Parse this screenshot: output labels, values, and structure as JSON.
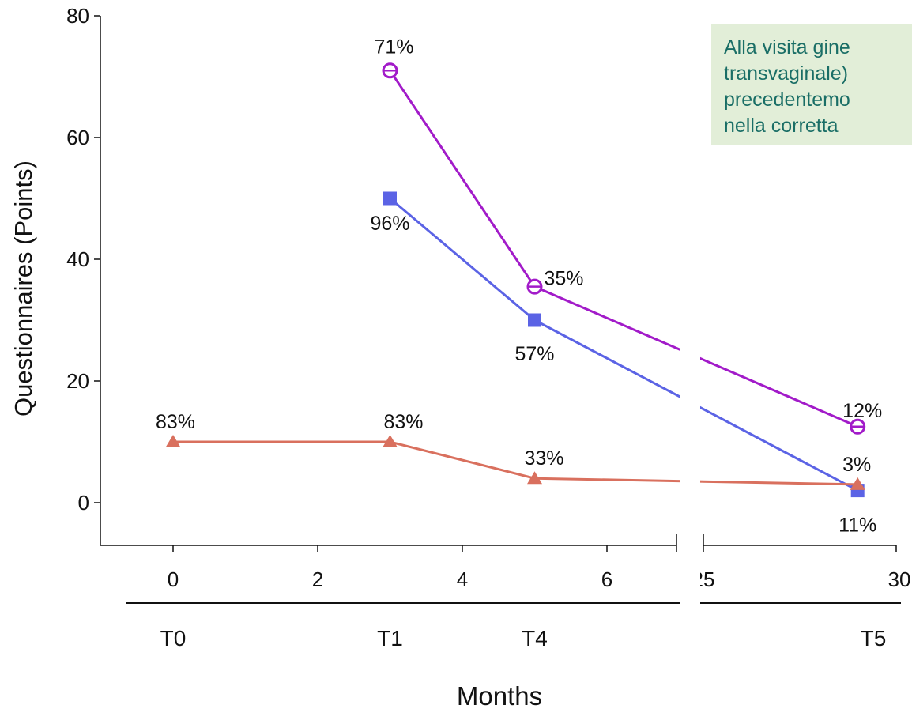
{
  "chart_data": {
    "type": "line",
    "title": "",
    "xlabel": "Months",
    "ylabel": "Questionnaires (Points)",
    "ylim": [
      -7,
      80
    ],
    "y_ticks": [
      "0",
      "20",
      "40",
      "60",
      "80"
    ],
    "x_ticks": [
      "0",
      "2",
      "4",
      "6",
      "25",
      "30"
    ],
    "x_axis_break": true,
    "timepoint_labels": [
      {
        "label": "T0",
        "x": 0
      },
      {
        "label": "T1",
        "x": 3
      },
      {
        "label": "T4",
        "x": 5
      },
      {
        "label": "T5",
        "x": 29
      }
    ],
    "legend": "none",
    "grid": false,
    "series": [
      {
        "marker": "circle-open",
        "color": "#a21bc9",
        "x": [
          3,
          5,
          29
        ],
        "y": [
          71,
          35.5,
          12.5
        ],
        "labels": [
          "71%",
          "35%",
          "12%"
        ]
      },
      {
        "marker": "square",
        "color": "#5b63e5",
        "x": [
          3,
          5,
          29
        ],
        "y": [
          50,
          30,
          2
        ],
        "labels": [
          "96%",
          "57%",
          "11%"
        ]
      },
      {
        "marker": "triangle",
        "color": "#d9705e",
        "x": [
          0,
          3,
          5,
          29
        ],
        "y": [
          10,
          10,
          4,
          3
        ],
        "labels": [
          "83%",
          "83%",
          "33%",
          "3%"
        ]
      }
    ]
  },
  "note": {
    "lines": [
      "Alla visita gine",
      "transvaginale)",
      "precedentemo",
      "nella corretta"
    ]
  }
}
